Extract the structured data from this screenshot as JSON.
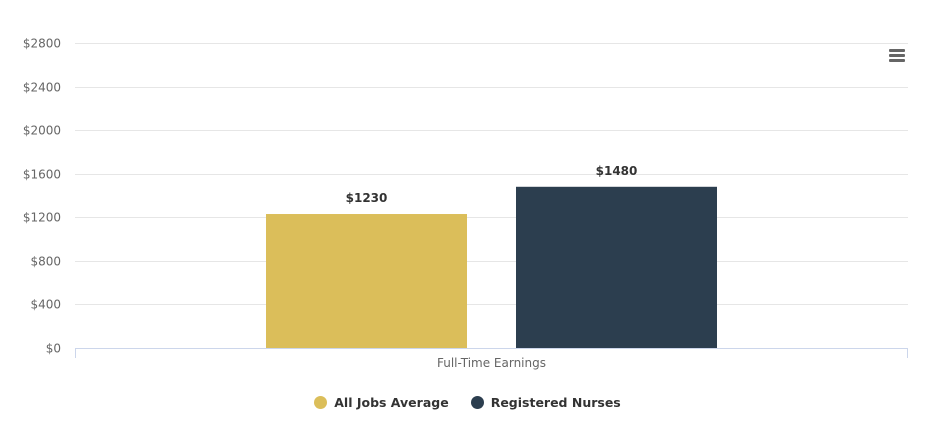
{
  "chart_data": {
    "type": "bar",
    "categories": [
      "Full-Time Earnings"
    ],
    "series": [
      {
        "name": "All Jobs Average",
        "values": [
          1230
        ],
        "label": "$1230",
        "color": "#dbbe5a"
      },
      {
        "name": "Registered Nurses",
        "values": [
          1480
        ],
        "label": "$1480",
        "color": "#2c3e4f"
      }
    ],
    "ylim": [
      0,
      2800
    ],
    "yticks": [
      0,
      400,
      800,
      1200,
      1600,
      2000,
      2400,
      2800
    ],
    "ytick_labels": [
      "$0",
      "$400",
      "$800",
      "$1200",
      "$1600",
      "$2000",
      "$2400",
      "$2800"
    ],
    "grid": true,
    "legend_position": "bottom-center"
  },
  "menu_icon": "hamburger-menu-icon"
}
